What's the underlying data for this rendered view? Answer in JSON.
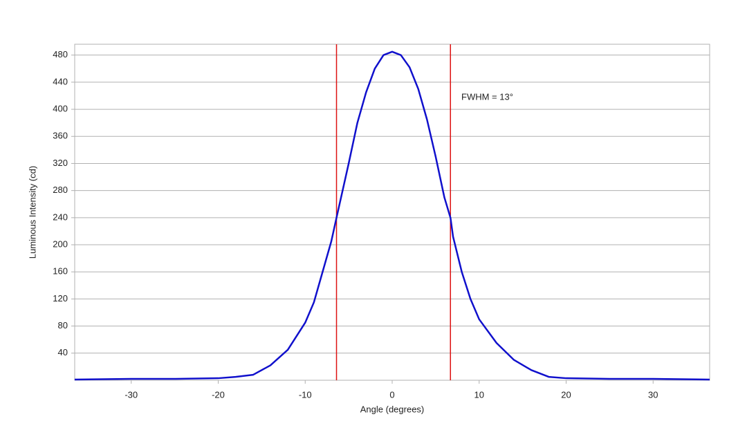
{
  "chart_data": {
    "type": "line",
    "xlabel": "Angle (degrees)",
    "ylabel": "Luminous Intensity (cd)",
    "annotation": "FWHM = 13°",
    "x": [
      -36.5,
      -30,
      -25,
      -20,
      -18,
      -16,
      -14,
      -12,
      -10,
      -9,
      -8,
      -7,
      -6.4,
      -5,
      -4,
      -3,
      -2,
      -1,
      0,
      1,
      2,
      3,
      4,
      5,
      6,
      6.7,
      7,
      8,
      9,
      10,
      12,
      14,
      16,
      18,
      20,
      25,
      30,
      36.5
    ],
    "series": [
      {
        "color": "#1010cc",
        "values": [
          1,
          2,
          2,
          3,
          5,
          8,
          22,
          45,
          85,
          115,
          160,
          205,
          240,
          320,
          380,
          425,
          460,
          480,
          485,
          480,
          462,
          430,
          385,
          330,
          270,
          240,
          212,
          160,
          120,
          90,
          55,
          30,
          15,
          5,
          3,
          2,
          2,
          1
        ]
      }
    ],
    "vlines": [
      -6.4,
      6.7
    ],
    "vline_color": "#dd1111",
    "xlim": [
      -36.5,
      36.5
    ],
    "ylim": [
      0,
      496
    ],
    "xticks": [
      -30,
      -20,
      -10,
      0,
      10,
      20,
      30
    ],
    "yticks": [
      40,
      80,
      120,
      160,
      200,
      240,
      280,
      320,
      360,
      400,
      440,
      480
    ],
    "grid": true
  }
}
